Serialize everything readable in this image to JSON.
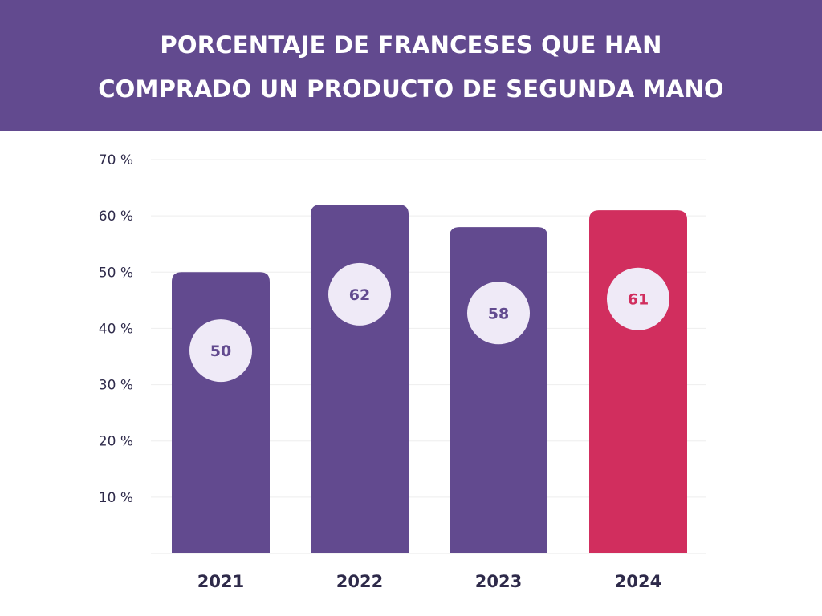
{
  "chart_data": {
    "type": "bar",
    "title_lines": [
      "PORCENTAJE DE FRANCESES QUE HAN",
      "COMPRADO UN PRODUCTO DE SEGUNDA MANO"
    ],
    "categories": [
      "2021",
      "2022",
      "2023",
      "2024"
    ],
    "values": [
      50,
      62,
      58,
      61
    ],
    "value_labels": [
      "50",
      "62",
      "58",
      "61"
    ],
    "y_ticks": [
      10,
      20,
      30,
      40,
      50,
      60,
      70
    ],
    "y_tick_labels": [
      "10 %",
      "20 %",
      "30 %",
      "40 %",
      "50 %",
      "60 %",
      "70 %"
    ],
    "ylim": [
      0,
      70
    ],
    "grid": true,
    "colors": {
      "header": "#624a8f",
      "bar": "#624a8f",
      "highlight_bar": "#d12e5e",
      "value_circle": "#efeaf7",
      "grid": "#eeeeee"
    },
    "highlight_index": 3
  }
}
